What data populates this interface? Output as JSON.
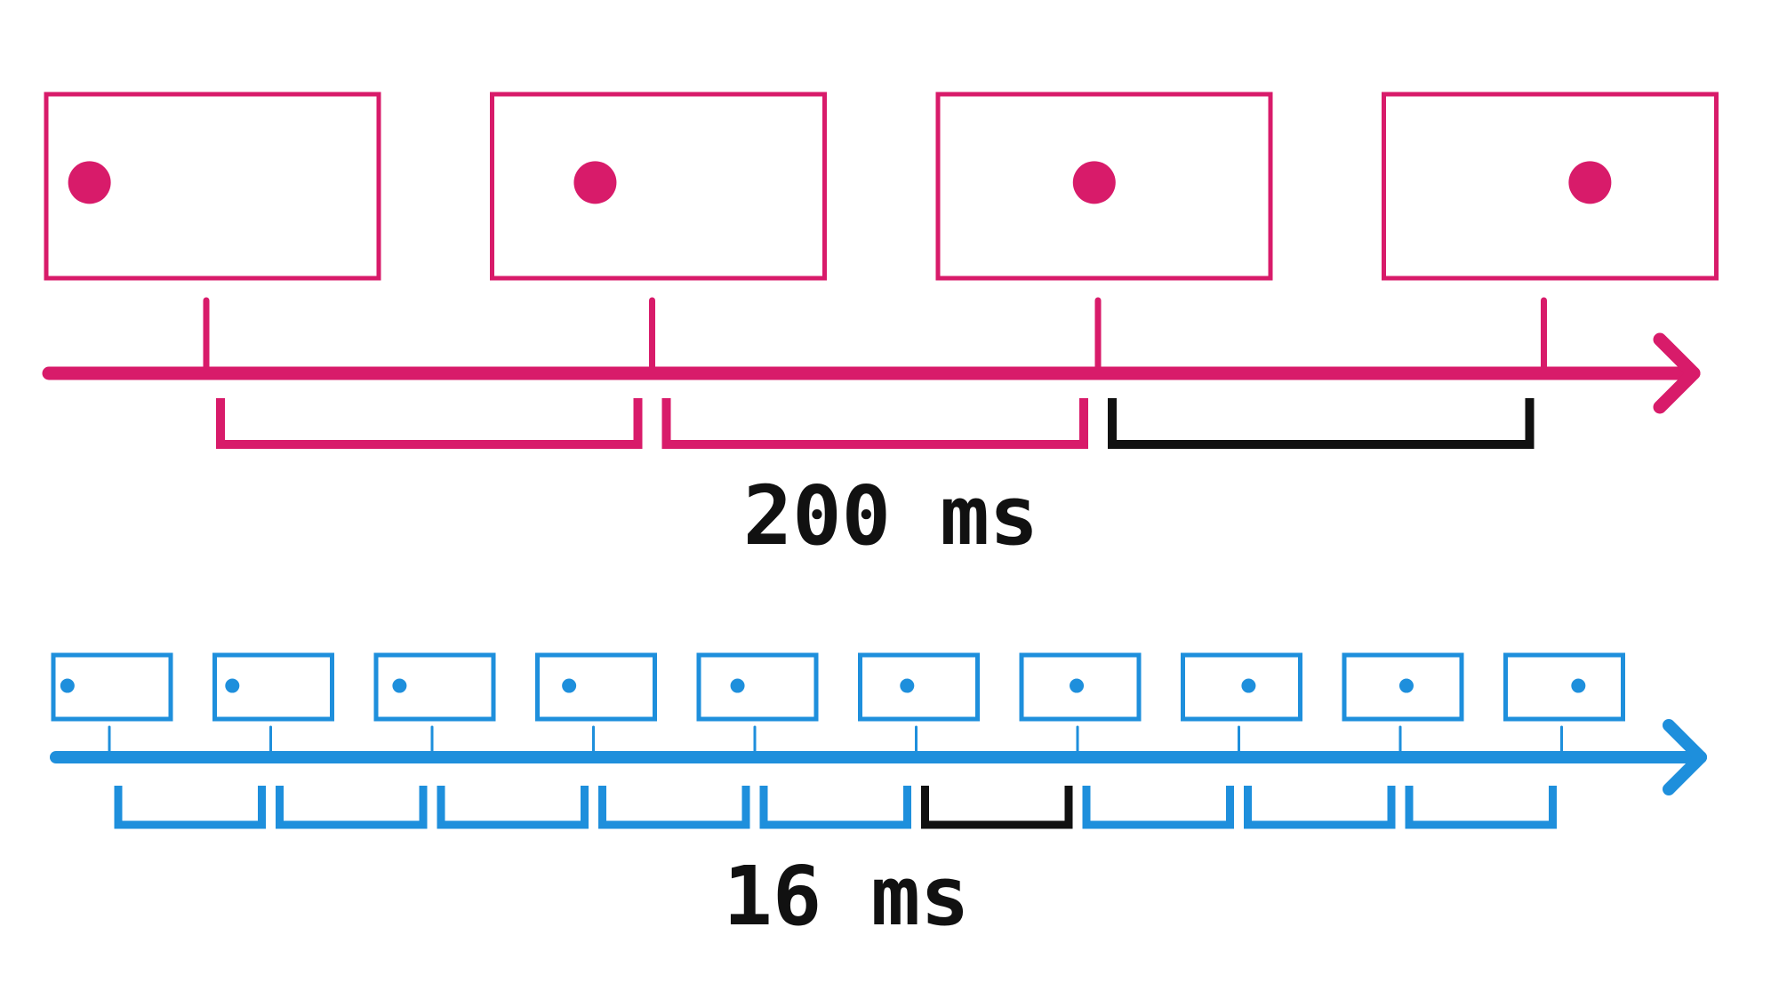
{
  "colors": {
    "slow": "#d81b6a",
    "fast": "#1e8fdc",
    "highlight": "#111111",
    "background": "#ffffff"
  },
  "slow_timeline": {
    "frame_count": 4,
    "highlighted_interval": 2,
    "interval_label": "200 ms",
    "interval_ms": 200,
    "dot_positions": [
      0.13,
      0.31,
      0.47,
      0.62
    ]
  },
  "fast_timeline": {
    "frame_count": 10,
    "highlighted_interval": 5,
    "interval_label": "16 ms",
    "interval_ms": 16,
    "dot_positions": [
      0.12,
      0.15,
      0.2,
      0.27,
      0.33,
      0.4,
      0.47,
      0.56,
      0.53,
      0.62
    ]
  }
}
